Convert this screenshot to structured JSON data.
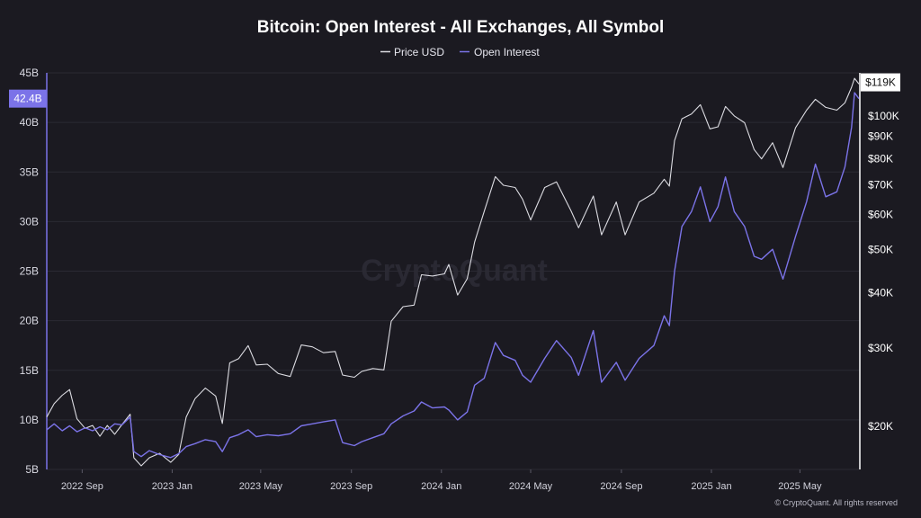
{
  "chart_data": {
    "type": "line",
    "title": "Bitcoin: Open Interest - All Exchanges, All Symbol",
    "legend": {
      "placement": "top-center",
      "entries": [
        {
          "name": "Price USD",
          "color": "#dcdce2"
        },
        {
          "name": "Open Interest",
          "color": "#7b73e8"
        }
      ]
    },
    "x_axis": {
      "tick_labels": [
        "2022 Sep",
        "2023 Jan",
        "2023 May",
        "2023 Sep",
        "2024 Jan",
        "2024 May",
        "2024 Sep",
        "2025 Jan",
        "2025 May"
      ],
      "tick_dates": [
        "2022-09-01",
        "2023-01-01",
        "2023-05-01",
        "2023-09-01",
        "2024-01-01",
        "2024-05-01",
        "2024-09-01",
        "2025-01-01",
        "2025-05-01"
      ],
      "range": [
        "2022-07-15",
        "2025-07-20"
      ]
    },
    "y_axis_left": {
      "series": "Open Interest",
      "scale": "linear",
      "range": [
        5,
        45
      ],
      "tick_values": [
        5,
        10,
        15,
        20,
        25,
        30,
        35,
        40,
        45
      ],
      "tick_labels": [
        "5B",
        "10B",
        "15B",
        "20B",
        "25B",
        "30B",
        "35B",
        "40B",
        "45B"
      ],
      "current_value_label": "42.4B",
      "current_value": 42.4
    },
    "y_axis_right": {
      "series": "Price USD",
      "scale": "log",
      "range": [
        16000,
        125000
      ],
      "tick_values": [
        20000,
        30000,
        40000,
        50000,
        60000,
        70000,
        80000,
        90000,
        100000
      ],
      "tick_labels": [
        "$20K",
        "$30K",
        "$40K",
        "$50K",
        "$60K",
        "$70K",
        "$80K",
        "$90K",
        "$100K"
      ],
      "current_value_label": "$119K",
      "current_value": 119000
    },
    "grid": {
      "horizontal": true,
      "vertical": false
    },
    "series": [
      {
        "name": "Price USD",
        "axis": "right",
        "unit": "USD",
        "points": [
          [
            "2022-07-15",
            21000
          ],
          [
            "2022-07-25",
            22500
          ],
          [
            "2022-08-05",
            23500
          ],
          [
            "2022-08-15",
            24200
          ],
          [
            "2022-08-25",
            20800
          ],
          [
            "2022-09-05",
            19800
          ],
          [
            "2022-09-15",
            20100
          ],
          [
            "2022-09-25",
            19000
          ],
          [
            "2022-10-05",
            20100
          ],
          [
            "2022-10-15",
            19200
          ],
          [
            "2022-10-25",
            20200
          ],
          [
            "2022-11-05",
            21300
          ],
          [
            "2022-11-10",
            17000
          ],
          [
            "2022-11-20",
            16300
          ],
          [
            "2022-12-01",
            17000
          ],
          [
            "2022-12-15",
            17400
          ],
          [
            "2022-12-30",
            16600
          ],
          [
            "2023-01-10",
            17300
          ],
          [
            "2023-01-20",
            21000
          ],
          [
            "2023-02-01",
            23100
          ],
          [
            "2023-02-15",
            24400
          ],
          [
            "2023-03-01",
            23400
          ],
          [
            "2023-03-10",
            20300
          ],
          [
            "2023-03-20",
            27800
          ],
          [
            "2023-04-01",
            28400
          ],
          [
            "2023-04-14",
            30400
          ],
          [
            "2023-04-25",
            27500
          ],
          [
            "2023-05-10",
            27600
          ],
          [
            "2023-05-25",
            26300
          ],
          [
            "2023-06-10",
            25900
          ],
          [
            "2023-06-25",
            30500
          ],
          [
            "2023-07-10",
            30200
          ],
          [
            "2023-07-25",
            29300
          ],
          [
            "2023-08-10",
            29500
          ],
          [
            "2023-08-20",
            26100
          ],
          [
            "2023-09-05",
            25800
          ],
          [
            "2023-09-15",
            26600
          ],
          [
            "2023-09-30",
            27000
          ],
          [
            "2023-10-15",
            26800
          ],
          [
            "2023-10-25",
            34500
          ],
          [
            "2023-11-10",
            37200
          ],
          [
            "2023-11-25",
            37500
          ],
          [
            "2023-12-05",
            43900
          ],
          [
            "2023-12-20",
            43600
          ],
          [
            "2024-01-05",
            44100
          ],
          [
            "2024-01-11",
            46300
          ],
          [
            "2024-01-23",
            39500
          ],
          [
            "2024-02-05",
            43000
          ],
          [
            "2024-02-15",
            52000
          ],
          [
            "2024-02-28",
            61000
          ],
          [
            "2024-03-14",
            73000
          ],
          [
            "2024-03-25",
            69800
          ],
          [
            "2024-04-10",
            69000
          ],
          [
            "2024-04-20",
            64900
          ],
          [
            "2024-05-01",
            58300
          ],
          [
            "2024-05-20",
            69000
          ],
          [
            "2024-06-05",
            71000
          ],
          [
            "2024-06-25",
            61000
          ],
          [
            "2024-07-05",
            56000
          ],
          [
            "2024-07-25",
            66000
          ],
          [
            "2024-08-05",
            54000
          ],
          [
            "2024-08-25",
            64000
          ],
          [
            "2024-09-06",
            54000
          ],
          [
            "2024-09-25",
            64000
          ],
          [
            "2024-10-15",
            67000
          ],
          [
            "2024-10-29",
            72000
          ],
          [
            "2024-11-05",
            69500
          ],
          [
            "2024-11-12",
            88000
          ],
          [
            "2024-11-22",
            98500
          ],
          [
            "2024-12-05",
            101000
          ],
          [
            "2024-12-17",
            106000
          ],
          [
            "2024-12-30",
            93500
          ],
          [
            "2025-01-10",
            94500
          ],
          [
            "2025-01-20",
            105000
          ],
          [
            "2025-02-01",
            100000
          ],
          [
            "2025-02-15",
            96500
          ],
          [
            "2025-02-28",
            84000
          ],
          [
            "2025-03-10",
            80000
          ],
          [
            "2025-03-25",
            87000
          ],
          [
            "2025-04-08",
            76500
          ],
          [
            "2025-04-25",
            94000
          ],
          [
            "2025-05-10",
            103000
          ],
          [
            "2025-05-22",
            109000
          ],
          [
            "2025-06-05",
            104500
          ],
          [
            "2025-06-20",
            103000
          ],
          [
            "2025-07-01",
            107000
          ],
          [
            "2025-07-10",
            116000
          ],
          [
            "2025-07-14",
            121500
          ],
          [
            "2025-07-20",
            118000
          ]
        ]
      },
      {
        "name": "Open Interest",
        "axis": "left",
        "unit": "B",
        "points": [
          [
            "2022-07-15",
            9.0
          ],
          [
            "2022-07-25",
            9.6
          ],
          [
            "2022-08-05",
            8.9
          ],
          [
            "2022-08-15",
            9.4
          ],
          [
            "2022-08-25",
            8.8
          ],
          [
            "2022-09-05",
            9.2
          ],
          [
            "2022-09-15",
            8.9
          ],
          [
            "2022-09-25",
            9.3
          ],
          [
            "2022-10-05",
            9.0
          ],
          [
            "2022-10-15",
            9.6
          ],
          [
            "2022-10-25",
            9.5
          ],
          [
            "2022-11-05",
            10.3
          ],
          [
            "2022-11-10",
            6.8
          ],
          [
            "2022-11-20",
            6.3
          ],
          [
            "2022-12-01",
            6.9
          ],
          [
            "2022-12-15",
            6.5
          ],
          [
            "2022-12-30",
            6.2
          ],
          [
            "2023-01-10",
            6.6
          ],
          [
            "2023-01-20",
            7.3
          ],
          [
            "2023-02-01",
            7.6
          ],
          [
            "2023-02-15",
            8.0
          ],
          [
            "2023-03-01",
            7.8
          ],
          [
            "2023-03-10",
            6.8
          ],
          [
            "2023-03-20",
            8.2
          ],
          [
            "2023-04-01",
            8.5
          ],
          [
            "2023-04-14",
            9.0
          ],
          [
            "2023-04-25",
            8.3
          ],
          [
            "2023-05-10",
            8.5
          ],
          [
            "2023-05-25",
            8.4
          ],
          [
            "2023-06-10",
            8.6
          ],
          [
            "2023-06-25",
            9.4
          ],
          [
            "2023-07-10",
            9.6
          ],
          [
            "2023-07-25",
            9.8
          ],
          [
            "2023-08-10",
            10.0
          ],
          [
            "2023-08-20",
            7.7
          ],
          [
            "2023-09-05",
            7.4
          ],
          [
            "2023-09-15",
            7.8
          ],
          [
            "2023-09-30",
            8.2
          ],
          [
            "2023-10-15",
            8.6
          ],
          [
            "2023-10-25",
            9.6
          ],
          [
            "2023-11-10",
            10.4
          ],
          [
            "2023-11-25",
            10.9
          ],
          [
            "2023-12-05",
            11.8
          ],
          [
            "2023-12-20",
            11.2
          ],
          [
            "2024-01-05",
            11.3
          ],
          [
            "2024-01-11",
            11.0
          ],
          [
            "2024-01-23",
            10.0
          ],
          [
            "2024-02-05",
            10.8
          ],
          [
            "2024-02-15",
            13.5
          ],
          [
            "2024-02-28",
            14.2
          ],
          [
            "2024-03-14",
            17.8
          ],
          [
            "2024-03-25",
            16.5
          ],
          [
            "2024-04-10",
            16.0
          ],
          [
            "2024-04-20",
            14.5
          ],
          [
            "2024-05-01",
            13.8
          ],
          [
            "2024-05-20",
            16.2
          ],
          [
            "2024-06-05",
            18.0
          ],
          [
            "2024-06-25",
            16.3
          ],
          [
            "2024-07-05",
            14.5
          ],
          [
            "2024-07-25",
            19.0
          ],
          [
            "2024-08-05",
            13.8
          ],
          [
            "2024-08-25",
            15.8
          ],
          [
            "2024-09-06",
            14.0
          ],
          [
            "2024-09-25",
            16.2
          ],
          [
            "2024-10-15",
            17.5
          ],
          [
            "2024-10-29",
            20.5
          ],
          [
            "2024-11-05",
            19.5
          ],
          [
            "2024-11-12",
            25.0
          ],
          [
            "2024-11-22",
            29.5
          ],
          [
            "2024-12-05",
            31.0
          ],
          [
            "2024-12-17",
            33.5
          ],
          [
            "2024-12-30",
            30.0
          ],
          [
            "2025-01-10",
            31.5
          ],
          [
            "2025-01-20",
            34.5
          ],
          [
            "2025-02-01",
            31.0
          ],
          [
            "2025-02-15",
            29.5
          ],
          [
            "2025-02-28",
            26.5
          ],
          [
            "2025-03-10",
            26.2
          ],
          [
            "2025-03-25",
            27.2
          ],
          [
            "2025-04-08",
            24.2
          ],
          [
            "2025-04-25",
            28.5
          ],
          [
            "2025-05-10",
            32.0
          ],
          [
            "2025-05-22",
            35.8
          ],
          [
            "2025-06-05",
            32.5
          ],
          [
            "2025-06-20",
            33.0
          ],
          [
            "2025-07-01",
            35.5
          ],
          [
            "2025-07-10",
            39.5
          ],
          [
            "2025-07-14",
            43.0
          ],
          [
            "2025-07-20",
            42.4
          ]
        ]
      }
    ]
  },
  "watermark": "CryptoQuant",
  "copyright": "© CryptoQuant. All rights reserved",
  "colors": {
    "background": "#1b1a21",
    "grid": "#2b2a33",
    "price_line": "#dcdce2",
    "oi_line": "#7b73e8",
    "left_axis_line": "#7b73e8",
    "right_axis_line": "#ffffff"
  }
}
